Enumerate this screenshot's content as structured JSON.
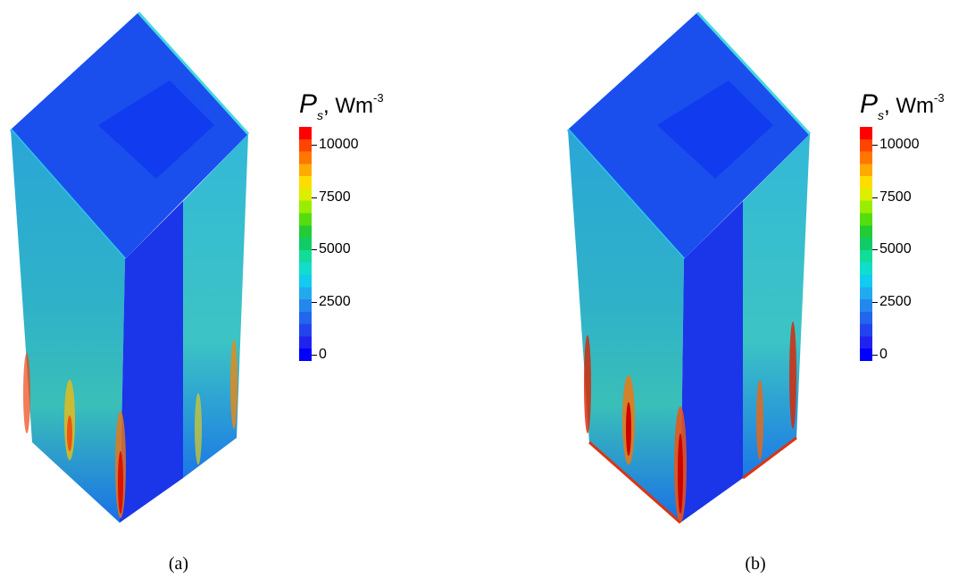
{
  "panels": [
    {
      "id": "a",
      "caption": "(a)",
      "legend": {
        "symbol": "P",
        "subscript": "s",
        "units": ", Wm",
        "units_exponent": "-3",
        "ticks": [
          "10000",
          "7500",
          "5000",
          "2500",
          "0"
        ]
      }
    },
    {
      "id": "b",
      "caption": "(b)",
      "legend": {
        "symbol": "P",
        "subscript": "s",
        "units": ", Wm",
        "units_exponent": "-3",
        "ticks": [
          "10000",
          "7500",
          "5000",
          "2500",
          "0"
        ]
      }
    }
  ],
  "colorbar_colors": [
    "#ff0000",
    "#ff4400",
    "#ff7700",
    "#ffaa00",
    "#ffdd00",
    "#ddee00",
    "#99ee00",
    "#55dd11",
    "#22cc33",
    "#11cc66",
    "#11dd99",
    "#11ddcc",
    "#11ccee",
    "#22aaee",
    "#2288ee",
    "#2266ee",
    "#2244ee",
    "#2222ee",
    "#0000ff"
  ]
}
